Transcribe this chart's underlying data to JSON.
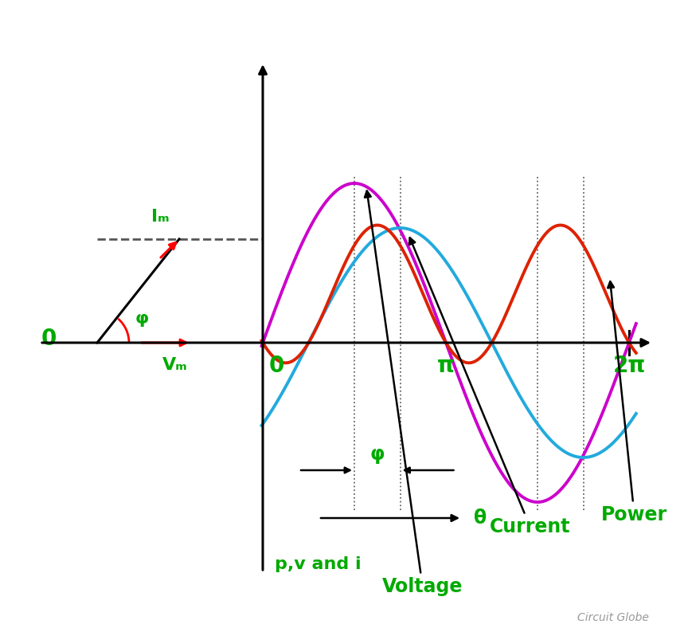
{
  "phi": 0.7854,
  "voltage_amplitude": 1.0,
  "current_amplitude": 0.72,
  "green_color": "#00AA00",
  "magenta_color": "#CC00CC",
  "cyan_color": "#22AADD",
  "red_color": "#DD2200",
  "background_color": "#FFFFFF",
  "curve_lw": 2.8,
  "axis_lw": 2.2,
  "pi_label": "π",
  "two_pi_label": "2π",
  "phi_label": "φ",
  "zero_label": "0",
  "Im_label": "Iₘ",
  "Vm_label": "Vₘ",
  "voltage_label": "Voltage",
  "current_label": "Current",
  "power_label": "Power",
  "pv_label": "p,v and i",
  "theta_label": "θ",
  "watermark": "Circuit Globe"
}
